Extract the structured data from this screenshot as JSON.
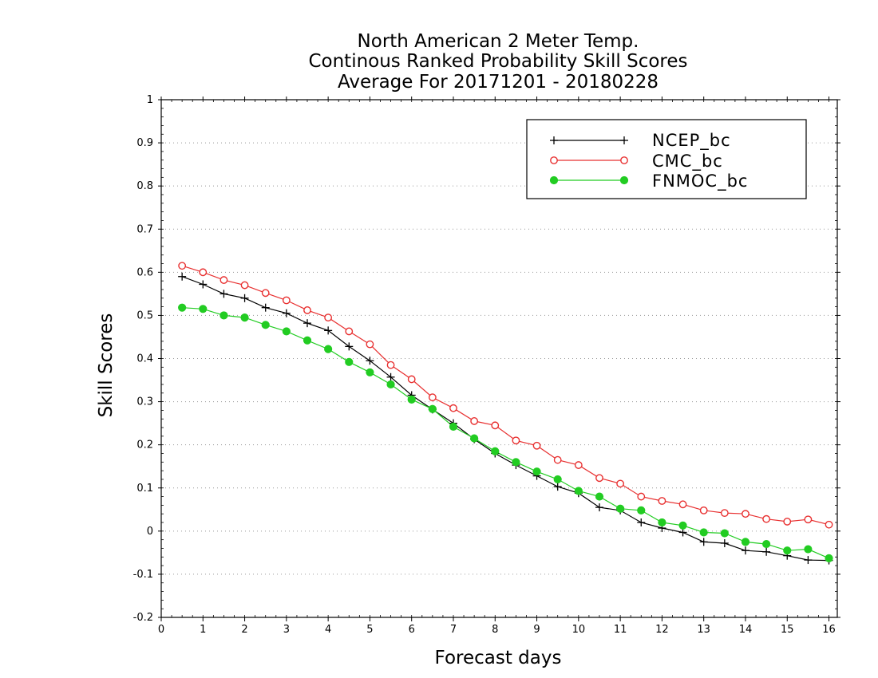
{
  "chart_data": {
    "type": "line",
    "title_lines": [
      "North American 2 Meter Temp.",
      "Continous Ranked Probability Skill Scores",
      "Average For 20171201 - 20180228"
    ],
    "xlabel": "Forecast days",
    "ylabel": "Skill Scores",
    "xlim": [
      0,
      16.2
    ],
    "ylim": [
      -0.2,
      1
    ],
    "xticks": [
      0,
      1,
      2,
      3,
      4,
      5,
      6,
      7,
      8,
      9,
      10,
      11,
      12,
      13,
      14,
      15,
      16
    ],
    "yticks": [
      -0.2,
      -0.1,
      0,
      0.1,
      0.2,
      0.3,
      0.4,
      0.5,
      0.6,
      0.7,
      0.8,
      0.9,
      1
    ],
    "ytick_labels": [
      "-0.2",
      "-0.1",
      "0",
      "0.1",
      "0.2",
      "0.3",
      "0.4",
      "0.5",
      "0.6",
      "0.7",
      "0.8",
      "0.9",
      "1"
    ],
    "grid": "horizontal-dotted",
    "legend_position": "top-right",
    "x": [
      0.5,
      1,
      1.5,
      2,
      2.5,
      3,
      3.5,
      4,
      4.5,
      5,
      5.5,
      6,
      6.5,
      7,
      7.5,
      8,
      8.5,
      9,
      9.5,
      10,
      10.5,
      11,
      11.5,
      12,
      12.5,
      13,
      13.5,
      14,
      14.5,
      15,
      15.5,
      16
    ],
    "series": [
      {
        "name": "NCEP_bc",
        "color": "#000000",
        "marker": "plus",
        "values": [
          0.59,
          0.572,
          0.55,
          0.54,
          0.518,
          0.505,
          0.482,
          0.465,
          0.428,
          0.395,
          0.357,
          0.315,
          0.282,
          0.25,
          0.213,
          0.18,
          0.153,
          0.128,
          0.103,
          0.088,
          0.055,
          0.048,
          0.02,
          0.007,
          -0.003,
          -0.025,
          -0.028,
          -0.045,
          -0.048,
          -0.057,
          -0.067,
          -0.068
        ]
      },
      {
        "name": "CMC_bc",
        "color": "#e83030",
        "marker": "open-circle",
        "values": [
          0.615,
          0.6,
          0.582,
          0.57,
          0.552,
          0.535,
          0.512,
          0.495,
          0.463,
          0.433,
          0.385,
          0.352,
          0.31,
          0.285,
          0.255,
          0.245,
          0.21,
          0.198,
          0.165,
          0.153,
          0.123,
          0.11,
          0.08,
          0.07,
          0.062,
          0.048,
          0.042,
          0.04,
          0.028,
          0.022,
          0.027,
          0.015
        ]
      },
      {
        "name": "FNMOC_bc",
        "color": "#22cc22",
        "marker": "filled-circle",
        "values": [
          0.518,
          0.515,
          0.5,
          0.495,
          0.478,
          0.463,
          0.442,
          0.422,
          0.392,
          0.368,
          0.34,
          0.305,
          0.283,
          0.242,
          0.215,
          0.185,
          0.16,
          0.138,
          0.12,
          0.093,
          0.08,
          0.052,
          0.048,
          0.02,
          0.013,
          -0.003,
          -0.005,
          -0.025,
          -0.03,
          -0.045,
          -0.042,
          -0.063
        ]
      }
    ]
  }
}
